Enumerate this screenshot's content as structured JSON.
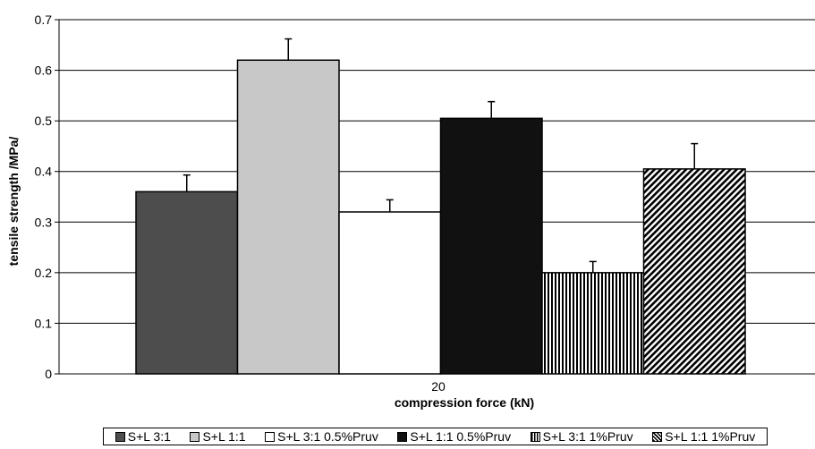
{
  "chart_data": {
    "type": "bar",
    "title": "",
    "xlabel": "compression force (kN)",
    "ylabel": "tensile strength  /MPa/",
    "categories": [
      "20"
    ],
    "ylim": [
      0,
      0.7
    ],
    "yticks": [
      "0",
      "0.1",
      "0.2",
      "0.3",
      "0.4",
      "0.5",
      "0.6",
      "0.7"
    ],
    "grid": true,
    "legend_position": "bottom",
    "series": [
      {
        "name": "S+L 3:1",
        "values": [
          0.36
        ],
        "error": [
          0.033
        ],
        "color": "#4d4d4d",
        "pattern": "solid"
      },
      {
        "name": "S+L 1:1",
        "values": [
          0.62
        ],
        "error": [
          0.042
        ],
        "color": "#c8c8c8",
        "pattern": "solid"
      },
      {
        "name": "S+L 3:1 0.5%Pruv",
        "values": [
          0.32
        ],
        "error": [
          0.024
        ],
        "color": "#ffffff",
        "pattern": "solid"
      },
      {
        "name": "S+L 1:1 0.5%Pruv",
        "values": [
          0.505
        ],
        "error": [
          0.033
        ],
        "color": "#111111",
        "pattern": "solid"
      },
      {
        "name": "S+L 3:1 1%Pruv",
        "values": [
          0.2
        ],
        "error": [
          0.022
        ],
        "color": "#000000",
        "pattern": "vertical-stripes"
      },
      {
        "name": "S+L 1:1 1%Pruv",
        "values": [
          0.405
        ],
        "error": [
          0.05
        ],
        "color": "#000000",
        "pattern": "diagonal-stripes"
      }
    ]
  }
}
